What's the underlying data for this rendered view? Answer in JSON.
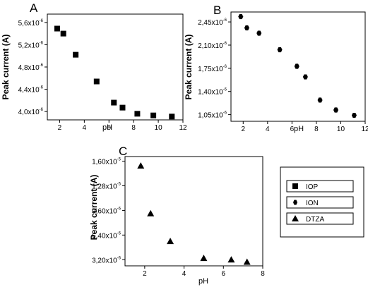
{
  "chart_data": [
    {
      "panel": "A",
      "type": "scatter",
      "xlabel": "pH",
      "ylabel": "Peak current (A)",
      "xlim": [
        1,
        12
      ],
      "ylim": [
        3.85e-06,
        5.75e-06
      ],
      "xticks": [
        2,
        4,
        6,
        8,
        10,
        12
      ],
      "yticks": [
        {
          "mantissa": "4,0",
          "exp": "-6",
          "value": 4e-06
        },
        {
          "mantissa": "4,4",
          "exp": "-6",
          "value": 4.4e-06
        },
        {
          "mantissa": "4,8",
          "exp": "-6",
          "value": 4.8e-06
        },
        {
          "mantissa": "5,2",
          "exp": "-6",
          "value": 5.2e-06
        },
        {
          "mantissa": "5,6",
          "exp": "-6",
          "value": 5.6e-06
        }
      ],
      "marker": "square",
      "x": [
        1.8,
        2.3,
        3.3,
        5.0,
        6.4,
        7.1,
        8.3,
        9.6,
        11.1
      ],
      "y": [
        5.49e-06,
        5.4e-06,
        5.02e-06,
        4.54e-06,
        4.16e-06,
        4.07e-06,
        3.96e-06,
        3.93e-06,
        3.91e-06
      ]
    },
    {
      "panel": "B",
      "type": "scatter",
      "xlabel": "pH",
      "ylabel": "Peak current (A)",
      "xlim": [
        1,
        12
      ],
      "ylim": [
        9.5e-07,
        2.6e-06
      ],
      "xticks": [
        2,
        4,
        6,
        8,
        10,
        12
      ],
      "yticks": [
        {
          "mantissa": "1,05",
          "exp": "-6",
          "value": 1.05e-06
        },
        {
          "mantissa": "1,40",
          "exp": "-6",
          "value": 1.4e-06
        },
        {
          "mantissa": "1,75",
          "exp": "-6",
          "value": 1.75e-06
        },
        {
          "mantissa": "2,10",
          "exp": "-6",
          "value": 2.1e-06
        },
        {
          "mantissa": "2,45",
          "exp": "-6",
          "value": 2.45e-06
        }
      ],
      "marker": "circle",
      "x": [
        1.8,
        2.3,
        3.3,
        5.0,
        6.4,
        7.1,
        8.3,
        9.6,
        11.1
      ],
      "y": [
        2.53e-06,
        2.36e-06,
        2.28e-06,
        2.03e-06,
        1.78e-06,
        1.62e-06,
        1.27e-06,
        1.12e-06,
        1.04e-06
      ]
    },
    {
      "panel": "C",
      "type": "scatter",
      "xlabel": "pH",
      "ylabel": "Peak current (A)",
      "xlim": [
        1,
        8
      ],
      "ylim": [
        2.4e-06,
        1.66e-05
      ],
      "xticks": [
        2,
        4,
        6,
        8
      ],
      "yticks": [
        {
          "mantissa": "3,20",
          "exp": "-6",
          "value": 3.2e-06
        },
        {
          "mantissa": "6,40",
          "exp": "-6",
          "value": 6.4e-06
        },
        {
          "mantissa": "9,60",
          "exp": "-6",
          "value": 9.6e-06
        },
        {
          "mantissa": "1,28",
          "exp": "-5",
          "value": 1.28e-05
        },
        {
          "mantissa": "1,60",
          "exp": "-5",
          "value": 1.6e-05
        }
      ],
      "marker": "triangle",
      "x": [
        1.8,
        2.3,
        3.3,
        5.0,
        6.4,
        7.2
      ],
      "y": [
        1.54e-05,
        9.2e-06,
        5.6e-06,
        3.4e-06,
        3.2e-06,
        2.9e-06
      ]
    }
  ],
  "legend": [
    {
      "marker": "square",
      "label": "IOP"
    },
    {
      "marker": "circle",
      "label": "ION"
    },
    {
      "marker": "triangle",
      "label": "DTZA"
    }
  ]
}
